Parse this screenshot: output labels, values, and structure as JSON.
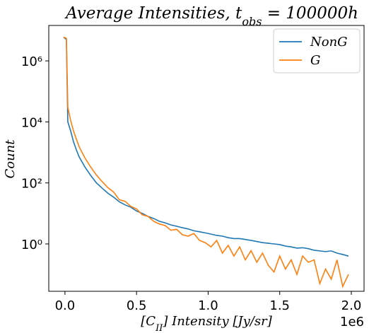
{
  "chart_data": {
    "type": "line",
    "title_parts": [
      "Average Intensities,  t",
      "obs",
      " = 100000h"
    ],
    "xlabel_parts": [
      "[C",
      "II",
      "] Intensity [Jy/sr]"
    ],
    "ylabel": "Count",
    "x": [
      -10000,
      10000,
      20000,
      40000,
      60000,
      80000,
      100000,
      140000,
      180000,
      220000,
      260000,
      300000,
      340000,
      380000,
      420000,
      460000,
      500000,
      540000,
      580000,
      620000,
      660000,
      700000,
      740000,
      780000,
      820000,
      860000,
      900000,
      940000,
      980000,
      1020000,
      1060000,
      1100000,
      1140000,
      1180000,
      1220000,
      1260000,
      1300000,
      1340000,
      1380000,
      1420000,
      1460000,
      1500000,
      1540000,
      1580000,
      1620000,
      1660000,
      1700000,
      1740000,
      1780000,
      1820000,
      1860000,
      1900000,
      1940000,
      1980000
    ],
    "series": [
      {
        "name": "NonG",
        "color": "#1f77b4",
        "values": [
          6000000,
          5000000,
          10000,
          5000,
          2200,
          1200,
          700,
          330,
          175,
          100,
          67,
          46,
          34,
          24,
          19,
          16,
          12,
          10,
          8,
          6.8,
          5.5,
          4.9,
          4.2,
          3.8,
          3.4,
          3.1,
          2.7,
          2.5,
          2.3,
          2.1,
          1.9,
          1.8,
          1.6,
          1.5,
          1.5,
          1.4,
          1.3,
          1.2,
          1.1,
          1.05,
          1.0,
          0.95,
          0.85,
          0.8,
          0.73,
          0.75,
          0.7,
          0.62,
          0.59,
          0.56,
          0.59,
          0.5,
          0.45,
          0.4
        ]
      },
      {
        "name": "G",
        "color": "#ff7f0e",
        "values": [
          6000000,
          5500000,
          30000,
          11000,
          5000,
          2700,
          1500,
          650,
          330,
          180,
          110,
          70,
          50,
          28,
          25,
          17,
          14,
          9,
          8,
          5.5,
          4.5,
          4,
          2.8,
          3,
          2,
          1.8,
          2.2,
          1.3,
          1.1,
          0.8,
          1.3,
          0.5,
          0.9,
          0.4,
          0.8,
          0.3,
          0.6,
          0.25,
          0.5,
          0.2,
          0.12,
          0.4,
          0.15,
          0.3,
          0.1,
          0.4,
          0.25,
          0.3,
          0.05,
          0.15,
          0.07,
          0.3,
          0.04,
          0.1
        ]
      }
    ],
    "xlim": [
      -113000,
      2089000
    ],
    "ylim": [
      0.028,
      14500000
    ],
    "yscale": "log",
    "xticks": [
      {
        "value": 0,
        "label": "0.0"
      },
      {
        "value": 500000,
        "label": "0.5"
      },
      {
        "value": 1000000,
        "label": "1.0"
      },
      {
        "value": 1500000,
        "label": "1.5"
      },
      {
        "value": 2000000,
        "label": "2.0"
      }
    ],
    "x_offset_label": "1e6",
    "yticks": [
      {
        "value": 1,
        "label": "10⁰"
      },
      {
        "value": 100,
        "label": "10²"
      },
      {
        "value": 10000,
        "label": "10⁴"
      },
      {
        "value": 1000000,
        "label": "10⁶"
      }
    ],
    "legend": "upper right"
  }
}
